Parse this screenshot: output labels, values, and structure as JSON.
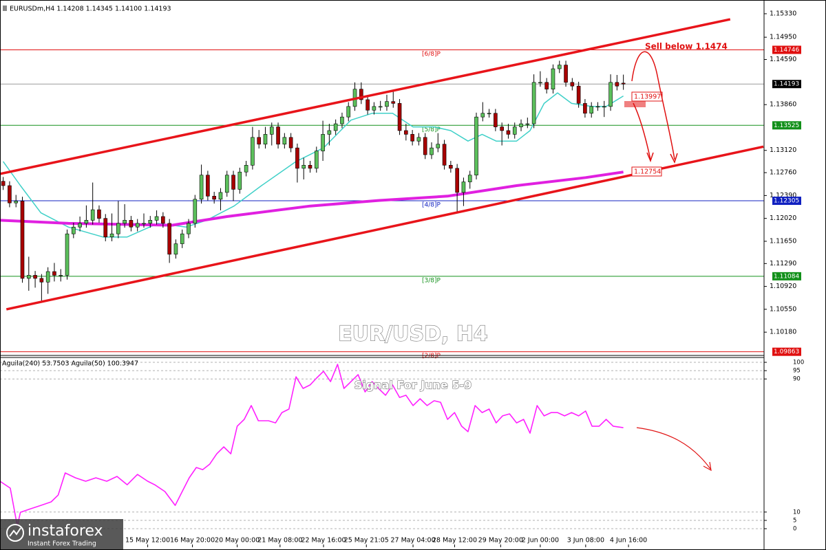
{
  "chart_data": [
    {
      "type": "candlestick",
      "header": "EURUSDm,H4  1.14208 1.14345 1.14100 1.14193",
      "title": "EUR/USD, H4",
      "annotations": [
        "Sell below 1.1474",
        "1.13997",
        "1.12754"
      ],
      "xlim": [
        -0.5,
        119
      ],
      "ylim": [
        1.09826,
        1.15552
      ],
      "yticks": [
        {
          "value": 1.1533,
          "label": "1.15330"
        },
        {
          "value": 1.1495,
          "label": "1.14950"
        },
        {
          "value": 1.1459,
          "label": "1.14590"
        },
        {
          "value": 1.1386,
          "label": "1.13860"
        },
        {
          "value": 1.1312,
          "label": "1.13120"
        },
        {
          "value": 1.1276,
          "label": "1.12760"
        },
        {
          "value": 1.1239,
          "label": "1.12390"
        },
        {
          "value": 1.1202,
          "label": "1.12020"
        },
        {
          "value": 1.1165,
          "label": "1.11650"
        },
        {
          "value": 1.1129,
          "label": "1.11290"
        },
        {
          "value": 1.1092,
          "label": "1.10920"
        },
        {
          "value": 1.1055,
          "label": "1.10550"
        },
        {
          "value": 1.1018,
          "label": "1.10180"
        }
      ],
      "up_color": "#5cc05c",
      "down_color": "#a80000",
      "open": [
        1.1262,
        1.1255,
        1.1227,
        1.123,
        1.1105,
        1.111,
        1.1105,
        1.1099,
        1.1116,
        1.111,
        1.111,
        1.1177,
        1.1188,
        1.1194,
        1.1199,
        1.1216,
        1.1202,
        1.1172,
        1.1177,
        1.1194,
        1.1199,
        1.1188,
        1.1194,
        1.1194,
        1.1199,
        1.1205,
        1.1194,
        1.1144,
        1.1161,
        1.1177,
        1.1194,
        1.1233,
        1.1272,
        1.1238,
        1.1233,
        1.1244,
        1.1272,
        1.1249,
        1.1277,
        1.1288,
        1.1333,
        1.1322,
        1.1338,
        1.135,
        1.1322,
        1.1333,
        1.1316,
        1.1283,
        1.1288,
        1.1283,
        1.1311,
        1.1338,
        1.1344,
        1.1355,
        1.1366,
        1.1383,
        1.1411,
        1.1394,
        1.1377,
        1.1383,
        1.1383,
        1.1391,
        1.1388,
        1.1344,
        1.1338,
        1.1327,
        1.1333,
        1.1305,
        1.1316,
        1.1322,
        1.1288,
        1.1283,
        1.1244,
        1.1261,
        1.1272,
        1.1366,
        1.1372,
        1.1372,
        1.135,
        1.1344,
        1.1338,
        1.135,
        1.1355,
        1.1355,
        1.1422,
        1.1422,
        1.1411,
        1.1444,
        1.145,
        1.1422,
        1.1416,
        1.1388,
        1.1372,
        1.1383,
        1.1383,
        1.1383,
        1.1422,
        1.14208
      ],
      "high": [
        1.1269,
        1.1262,
        1.124,
        1.1237,
        1.114,
        1.1117,
        1.1112,
        1.1123,
        1.113,
        1.112,
        1.1184,
        1.1195,
        1.1205,
        1.1223,
        1.126,
        1.1223,
        1.1209,
        1.121,
        1.123,
        1.1225,
        1.1206,
        1.1201,
        1.121,
        1.1206,
        1.1215,
        1.1212,
        1.1201,
        1.1168,
        1.1184,
        1.1201,
        1.124,
        1.1289,
        1.1279,
        1.1245,
        1.1251,
        1.1279,
        1.1279,
        1.1284,
        1.1295,
        1.135,
        1.1345,
        1.135,
        1.1357,
        1.1357,
        1.134,
        1.134,
        1.1323,
        1.13,
        1.1295,
        1.1318,
        1.136,
        1.1355,
        1.1362,
        1.1373,
        1.139,
        1.1422,
        1.1422,
        1.1401,
        1.139,
        1.1392,
        1.1402,
        1.141,
        1.1395,
        1.1355,
        1.1345,
        1.134,
        1.134,
        1.1325,
        1.134,
        1.1329,
        1.1295,
        1.129,
        1.1268,
        1.1279,
        1.1373,
        1.139,
        1.1379,
        1.1379,
        1.1357,
        1.1355,
        1.1357,
        1.1362,
        1.1365,
        1.1435,
        1.144,
        1.1429,
        1.1451,
        1.1457,
        1.1457,
        1.1429,
        1.1423,
        1.1395,
        1.139,
        1.139,
        1.1392,
        1.1435,
        1.1434,
        1.14345
      ],
      "low": [
        1.1248,
        1.122,
        1.122,
        1.1098,
        1.1085,
        1.109,
        1.1066,
        1.108,
        1.11,
        1.11,
        1.1103,
        1.117,
        1.1181,
        1.1187,
        1.1192,
        1.1195,
        1.1165,
        1.1165,
        1.117,
        1.1187,
        1.1181,
        1.1181,
        1.1187,
        1.1187,
        1.1192,
        1.1187,
        1.113,
        1.1137,
        1.1154,
        1.117,
        1.1187,
        1.1226,
        1.1231,
        1.1226,
        1.1215,
        1.1237,
        1.123,
        1.1242,
        1.127,
        1.1281,
        1.1315,
        1.1315,
        1.132,
        1.1315,
        1.1315,
        1.1309,
        1.126,
        1.1265,
        1.1276,
        1.1276,
        1.1295,
        1.132,
        1.1337,
        1.1348,
        1.1359,
        1.1376,
        1.1387,
        1.137,
        1.137,
        1.1376,
        1.1376,
        1.1381,
        1.1337,
        1.1328,
        1.132,
        1.132,
        1.1298,
        1.1298,
        1.1309,
        1.1281,
        1.1276,
        1.121,
        1.1222,
        1.125,
        1.1265,
        1.1359,
        1.1365,
        1.1343,
        1.132,
        1.1331,
        1.1331,
        1.1343,
        1.1348,
        1.1348,
        1.1415,
        1.1404,
        1.1404,
        1.1437,
        1.1415,
        1.1409,
        1.1381,
        1.1365,
        1.1365,
        1.1376,
        1.1366,
        1.1376,
        1.1409,
        1.141
      ],
      "close": [
        1.1255,
        1.1227,
        1.123,
        1.1105,
        1.111,
        1.1105,
        1.1099,
        1.1116,
        1.111,
        1.111,
        1.1177,
        1.1188,
        1.1194,
        1.1199,
        1.1216,
        1.1202,
        1.1172,
        1.1177,
        1.1194,
        1.1199,
        1.1188,
        1.1194,
        1.1194,
        1.1199,
        1.1205,
        1.1194,
        1.1144,
        1.1161,
        1.1177,
        1.1194,
        1.1233,
        1.1272,
        1.1238,
        1.1233,
        1.1244,
        1.1272,
        1.1249,
        1.1277,
        1.1288,
        1.1333,
        1.1322,
        1.1338,
        1.135,
        1.1322,
        1.1333,
        1.1316,
        1.1283,
        1.1288,
        1.1283,
        1.1311,
        1.1338,
        1.1344,
        1.1355,
        1.1366,
        1.1383,
        1.1411,
        1.1394,
        1.1377,
        1.1383,
        1.1383,
        1.1391,
        1.1388,
        1.1344,
        1.1338,
        1.1327,
        1.1333,
        1.1305,
        1.1316,
        1.1322,
        1.1288,
        1.1283,
        1.1244,
        1.1261,
        1.1272,
        1.1366,
        1.1372,
        1.1372,
        1.135,
        1.1344,
        1.1338,
        1.135,
        1.1355,
        1.1355,
        1.1422,
        1.1422,
        1.1411,
        1.1444,
        1.145,
        1.1422,
        1.1416,
        1.1388,
        1.1372,
        1.1383,
        1.1383,
        1.1383,
        1.1422,
        1.1416,
        1.14193
      ],
      "last_price_color": "#000000",
      "moving_averages": [
        {
          "color": "#3fd0c8",
          "width": 1.5,
          "x": [
            0,
            2.7,
            5.9,
            10.2,
            15.6,
            19.4,
            24.2,
            28.6,
            31.8,
            36.1,
            40.4,
            45.8,
            50.1,
            54.4,
            57.7,
            60.9,
            64.1,
            67.4,
            70.0,
            72.7,
            74.9,
            77.1,
            80.3,
            82.4,
            84.6,
            86.7,
            88.9,
            92.1,
            94.3,
            97.0
          ],
          "values": [
            1.1294,
            1.1255,
            1.1211,
            1.1188,
            1.1172,
            1.1172,
            1.1194,
            1.1188,
            1.1199,
            1.1222,
            1.1255,
            1.1294,
            1.1316,
            1.1361,
            1.1372,
            1.1372,
            1.135,
            1.135,
            1.1344,
            1.1327,
            1.1338,
            1.1327,
            1.1327,
            1.1344,
            1.1388,
            1.1405,
            1.1388,
            1.1383,
            1.1383,
            1.14
          ]
        },
        {
          "color": "#e020e0",
          "width": 4,
          "x": [
            -0.5,
            10.2,
            26.4,
            35.0,
            48.0,
            58.7,
            69.5,
            80.3,
            91.1,
            97.0
          ],
          "values": [
            1.1199,
            1.1194,
            1.1191,
            1.1205,
            1.1222,
            1.1231,
            1.1238,
            1.1255,
            1.1268,
            1.1277
          ]
        }
      ],
      "channels": [
        {
          "color": "#e8141a",
          "x": [
            -0.5,
            113.7
          ],
          "values": [
            1.1274,
            1.1524
          ]
        },
        {
          "color": "#e8141a",
          "x": [
            0.5,
            118.9
          ],
          "values": [
            1.1055,
            1.1318
          ]
        }
      ],
      "levels": [
        {
          "value": 1.14746,
          "label": "[6/8]P",
          "color": "#e01010"
        },
        {
          "value": 1.13525,
          "label": "[5/8]P",
          "color": "#12901a"
        },
        {
          "value": 1.12305,
          "label": "[4/8]P",
          "color": "#1020c0"
        },
        {
          "value": 1.11084,
          "label": "[3/8]P",
          "color": "#12901a"
        },
        {
          "value": 1.09863,
          "label": "[2/8]P",
          "color": "#e01010"
        }
      ]
    },
    {
      "type": "line",
      "header": "Aguila(240) 53.7503  Aguila(50) 100.3947",
      "title": "Signal For June 5-9",
      "xlim": [
        -0.5,
        119
      ],
      "ylim": [
        -9.5,
        102.9
      ],
      "yticks": [
        100,
        95,
        90,
        10,
        5,
        0
      ],
      "grid": true,
      "xticks": [
        {
          "value": 22.6,
          "label": "15 May 12:00"
        },
        {
          "value": 29.6,
          "label": "16 May 20:00"
        },
        {
          "value": 36.6,
          "label": "20 May 00:00"
        },
        {
          "value": 43.3,
          "label": "21 May 08:00"
        },
        {
          "value": 50.1,
          "label": "22 May 16:00"
        },
        {
          "value": 56.8,
          "label": "25 May 21:05"
        },
        {
          "value": 64.1,
          "label": "27 May 04:00"
        },
        {
          "value": 70.6,
          "label": "28 May 12:00"
        },
        {
          "value": 77.8,
          "label": "29 May 20:00"
        },
        {
          "value": 84.0,
          "label": "2 Jun 00:00"
        },
        {
          "value": 91.1,
          "label": "3 Jun 08:00"
        },
        {
          "value": 97.8,
          "label": "4 Jun 16:00"
        }
      ],
      "series": [
        {
          "color": "#ff20ff",
          "x": [
            -0.5,
            1.1,
            2.2,
            2.7,
            4.3,
            5.9,
            7.5,
            8.6,
            9.7,
            11.3,
            12.9,
            14.5,
            16.2,
            17.8,
            19.4,
            21.0,
            22.6,
            23.7,
            25.3,
            26.9,
            28.0,
            29.1,
            30.2,
            31.2,
            32.3,
            33.4,
            34.5,
            35.6,
            36.6,
            37.7,
            38.8,
            39.9,
            41.5,
            42.6,
            43.6,
            44.7,
            45.8,
            46.9,
            48.0,
            49.0,
            50.1,
            51.2,
            52.3,
            53.3,
            54.4,
            55.5,
            56.6,
            57.7,
            58.7,
            59.8,
            60.9,
            62.0,
            63.0,
            64.1,
            65.2,
            66.3,
            67.4,
            68.4,
            69.5,
            70.6,
            71.7,
            72.7,
            73.8,
            74.9,
            76.0,
            77.1,
            78.1,
            79.2,
            80.3,
            81.4,
            82.4,
            83.5,
            84.6,
            85.7,
            86.7,
            87.8,
            88.9,
            90.0,
            91.1,
            92.1,
            93.2,
            94.3,
            95.4,
            97.0
          ],
          "values": [
            28.5,
            24.4,
            1.7,
            9.9,
            12.0,
            14.0,
            16.1,
            20.2,
            33.5,
            30.6,
            28.5,
            30.6,
            28.5,
            31.4,
            26.4,
            32.6,
            28.5,
            26.4,
            22.3,
            14.0,
            22.3,
            30.6,
            36.8,
            35.5,
            38.8,
            45.0,
            49.2,
            45.0,
            61.6,
            65.7,
            74.0,
            64.9,
            64.9,
            63.6,
            69.8,
            71.9,
            91.3,
            84.3,
            86.4,
            90.5,
            94.6,
            88.4,
            98.8,
            84.3,
            88.4,
            92.6,
            82.2,
            88.4,
            84.3,
            80.2,
            86.4,
            78.9,
            80.2,
            74.0,
            78.1,
            74.0,
            76.9,
            76.0,
            65.7,
            69.8,
            61.6,
            58.3,
            74.0,
            69.8,
            71.9,
            63.6,
            67.8,
            69.0,
            63.6,
            65.7,
            57.4,
            74.0,
            67.8,
            69.8,
            69.8,
            67.8,
            69.8,
            67.8,
            70.7,
            61.6,
            61.6,
            65.7,
            61.6,
            60.7
          ]
        }
      ]
    }
  ],
  "watermark": {
    "name": "instaforex",
    "tagline": "Instant Forex Trading"
  }
}
